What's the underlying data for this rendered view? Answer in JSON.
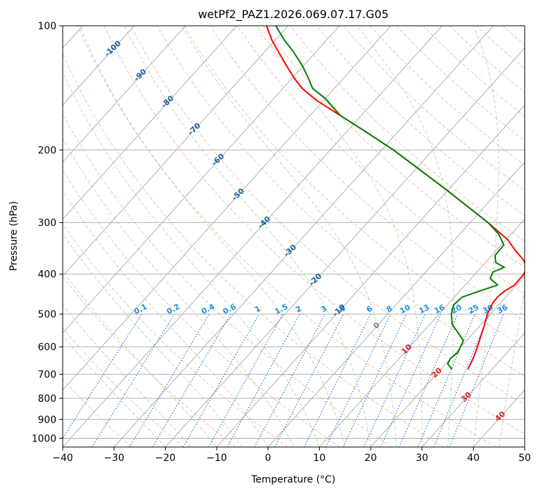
{
  "chart_data": {
    "type": "skew-t",
    "title": "wetPf2_PAZ1.2026.069.07.17.G05",
    "xlabel": "Temperature (°C)",
    "ylabel": "Pressure (hPa)",
    "xlim": [
      -40,
      50
    ],
    "ylim": [
      1050,
      100
    ],
    "x_ticks": [
      -40,
      -30,
      -20,
      -10,
      0,
      10,
      20,
      30,
      40,
      50
    ],
    "x_tick_labels": [
      "−40",
      "−30",
      "−20",
      "−10",
      "0",
      "10",
      "20",
      "30",
      "40",
      "50"
    ],
    "y_ticks": [
      100,
      200,
      300,
      400,
      500,
      600,
      700,
      800,
      900,
      1000
    ],
    "y_tick_labels": [
      "100",
      "200",
      "300",
      "400",
      "500",
      "600",
      "700",
      "800",
      "900",
      "1000"
    ],
    "isotherm_labels": [
      "-100",
      "-90",
      "-80",
      "-70",
      "-60",
      "-50",
      "-40",
      "-30",
      "-20",
      "-10",
      "0",
      "10",
      "20",
      "30",
      "40"
    ],
    "mixing_ratio_labels": [
      "0.1",
      "0.2",
      "0.4",
      "0.6",
      "1",
      "1.5",
      "2",
      "3",
      "4",
      "6",
      "8",
      "10",
      "13",
      "16",
      "20",
      "25",
      "30",
      "36"
    ],
    "series": [
      {
        "name": "temperature",
        "color": "#ff0000",
        "points": [
          [
            680,
            25.3
          ],
          [
            640,
            24.4
          ],
          [
            600,
            23.2
          ],
          [
            560,
            21.8
          ],
          [
            530,
            20.7
          ],
          [
            500,
            19.4
          ],
          [
            470,
            18.5
          ],
          [
            455,
            18.4
          ],
          [
            440,
            18.7
          ],
          [
            425,
            19.6
          ],
          [
            400,
            19.5
          ],
          [
            385,
            18.8
          ],
          [
            370,
            17.0
          ],
          [
            350,
            13.6
          ],
          [
            330,
            10.3
          ],
          [
            300,
            3.5
          ],
          [
            270,
            -4.5
          ],
          [
            250,
            -10.3
          ],
          [
            230,
            -16.8
          ],
          [
            200,
            -27.7
          ],
          [
            180,
            -36.6
          ],
          [
            165,
            -44.1
          ],
          [
            152,
            -51.2
          ],
          [
            142,
            -56.2
          ],
          [
            135,
            -59.2
          ],
          [
            125,
            -63.3
          ],
          [
            115,
            -67.6
          ],
          [
            108,
            -70.8
          ],
          [
            100,
            -74.2
          ]
        ]
      },
      {
        "name": "dewpoint",
        "color": "#008000",
        "points": [
          [
            680,
            22.2
          ],
          [
            660,
            20.4
          ],
          [
            640,
            20.0
          ],
          [
            620,
            20.4
          ],
          [
            600,
            19.9
          ],
          [
            580,
            19.4
          ],
          [
            560,
            17.5
          ],
          [
            530,
            14.4
          ],
          [
            500,
            12.4
          ],
          [
            475,
            11.2
          ],
          [
            455,
            11.5
          ],
          [
            440,
            13.8
          ],
          [
            425,
            16.3
          ],
          [
            410,
            13.7
          ],
          [
            395,
            13.1
          ],
          [
            385,
            14.5
          ],
          [
            375,
            12.0
          ],
          [
            360,
            10.6
          ],
          [
            340,
            10.5
          ],
          [
            320,
            7.6
          ],
          [
            300,
            3.5
          ],
          [
            270,
            -4.5
          ],
          [
            250,
            -10.3
          ],
          [
            230,
            -16.8
          ],
          [
            200,
            -27.7
          ],
          [
            180,
            -36.6
          ],
          [
            165,
            -44.1
          ],
          [
            150,
            -50.0
          ],
          [
            142,
            -54.2
          ],
          [
            135,
            -56.5
          ],
          [
            125,
            -60.2
          ],
          [
            115,
            -64.7
          ],
          [
            108,
            -68.4
          ],
          [
            100,
            -72.4
          ]
        ]
      }
    ]
  }
}
